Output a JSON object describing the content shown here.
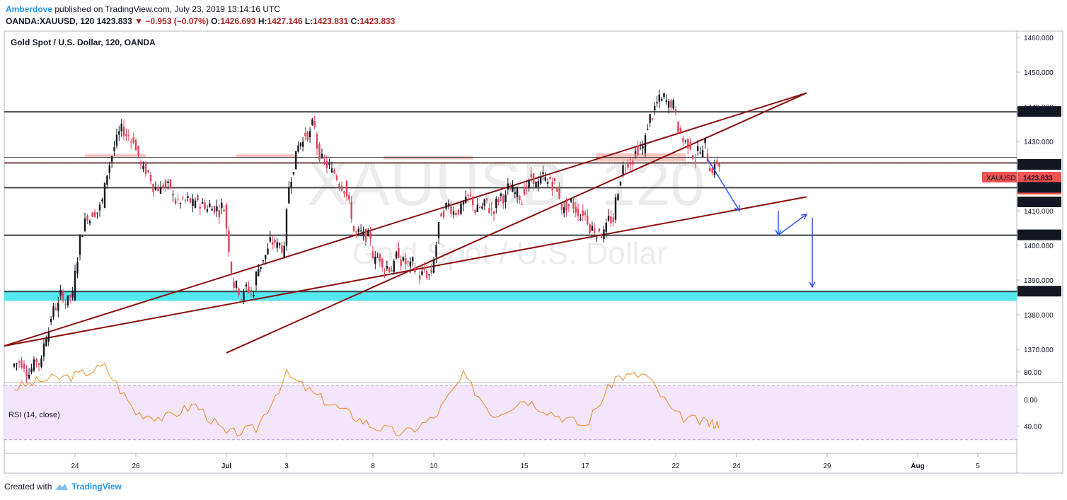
{
  "header": {
    "author": "Amberdove",
    "published": "published on TradingView.com, July 23, 2019 13:14:16 UTC",
    "symbol": "OANDA:XAUUSD, 120",
    "last": "1423.833",
    "change": "−0.953 (−0.07%)",
    "o_label": "O:",
    "o": "1426.693",
    "h_label": "H:",
    "h": "1427.146",
    "l_label": "L:",
    "l": "1423.831",
    "c_label": "C:",
    "c": "1423.833"
  },
  "footer": {
    "created_with": "Created with",
    "brand": "TradingView"
  },
  "colors": {
    "up": "#131722",
    "down": "#e0435a",
    "trend": "#8b0f0f",
    "level": "#444444",
    "support_zone": "#55e8f0",
    "resist_zone": "#f3b6b0",
    "arrow": "#2957e8",
    "rsi_line": "#f08a24",
    "rsi_band": "#f3e5fb",
    "price_tag": "#ef5350"
  },
  "chart_data": [
    {
      "type": "line",
      "title": "Gold Spot / U.S. Dollar, 120, OANDA",
      "watermark": [
        "XAUUSD, 120",
        "Gold Spot / U.S. Dollar"
      ],
      "xlabel": "",
      "ylabel": "",
      "ylim": [
        1364,
        1463
      ],
      "x_ticks": [
        "24",
        "26",
        "Jul",
        "3",
        "8",
        "10",
        "15",
        "17",
        "22",
        "24",
        "29",
        "Aug",
        "5"
      ],
      "y_ticks": [
        "1460.000",
        "1450.000",
        "1440.000",
        "1430.000",
        "1420.000",
        "1410.000",
        "1400.000",
        "1390.000",
        "1380.000",
        "1370.000"
      ],
      "x": [
        "Jun 20",
        "Jun 21",
        "Jun 24",
        "Jun 25",
        "Jun 26",
        "Jun 27",
        "Jun 28",
        "Jul 1",
        "Jul 2",
        "Jul 3",
        "Jul 4",
        "Jul 5",
        "Jul 8",
        "Jul 9",
        "Jul 10",
        "Jul 11",
        "Jul 12",
        "Jul 15",
        "Jul 16",
        "Jul 17",
        "Jul 18",
        "Jul 19",
        "Jul 22",
        "Jul 23"
      ],
      "series": [
        {
          "values": [
            1367,
            1385,
            1412,
            1432,
            1418,
            1411,
            1412,
            1387,
            1400,
            1433,
            1420,
            1400,
            1396,
            1391,
            1412,
            1410,
            1415,
            1418,
            1410,
            1406,
            1428,
            1441,
            1428,
            1424
          ]
        }
      ],
      "horizontal_levels": [
        1438.541,
        1425.376,
        1423.791,
        1416.649,
        1402.945,
        1386.692
      ],
      "price_labels": [
        {
          "value": 1438.541,
          "text": "1438.541"
        },
        {
          "value": 1425.376,
          "text": "1425.376"
        },
        {
          "value": 1423.833,
          "text": "1423.833",
          "tag": "XAUUSD",
          "countdown": "01:45:45"
        },
        {
          "value": 1423.791,
          "text": "1423.791"
        },
        {
          "value": 1416.649,
          "text": "1416.649"
        },
        {
          "value": 1402.945,
          "text": "1402.945"
        },
        {
          "value": 1386.692,
          "text": "1386.692"
        }
      ],
      "support_zone": [
        1384.0,
        1387.0
      ],
      "resistance_zones": [
        {
          "from": "Jun 25",
          "to": "Jun 26",
          "range": [
            1425.3,
            1426.3
          ]
        },
        {
          "from": "Jul 2",
          "to": "Jul 3",
          "range": [
            1425.3,
            1426.3
          ]
        },
        {
          "from": "Jul 9",
          "to": "Jul 11",
          "range": [
            1424.8,
            1425.8
          ]
        },
        {
          "from": "Jul 18",
          "to": "Jul 22",
          "range": [
            1424.2,
            1426.6
          ]
        }
      ],
      "trendlines": [
        {
          "from": {
            "x": "Jun 19",
            "y": 1371
          },
          "to": {
            "x": "Jul 26",
            "y": 1444
          }
        },
        {
          "from": {
            "x": "Jul 1",
            "y": 1369
          },
          "to": {
            "x": "Jul 26",
            "y": 1444
          }
        },
        {
          "from": {
            "x": "Jun 19",
            "y": 1371
          },
          "to": {
            "x": "Jul 26",
            "y": 1414
          }
        }
      ],
      "projection_arrows": [
        {
          "from": {
            "x": "Jul 23",
            "y": 1425
          },
          "to": {
            "x": "Jul 24",
            "y": 1410
          }
        },
        {
          "from": {
            "x": "Jul 25",
            "y": 1410
          },
          "to": {
            "x": "Jul 25",
            "y": 1403
          }
        },
        {
          "from": {
            "x": "Jul 25",
            "y": 1403
          },
          "to": {
            "x": "Jul 26",
            "y": 1409
          }
        },
        {
          "from": {
            "x": "Jul 27",
            "y": 1408
          },
          "to": {
            "x": "Jul 27",
            "y": 1388
          }
        }
      ]
    },
    {
      "type": "line",
      "title": "RSI (14, close)",
      "ylim": [
        20,
        100
      ],
      "y_ticks": [
        "80.00",
        "40.00"
      ],
      "zero_tick": "0.00",
      "band": [
        30,
        70
      ],
      "x": [
        "Jun 20",
        "Jun 21",
        "Jun 24",
        "Jun 25",
        "Jun 26",
        "Jun 27",
        "Jun 28",
        "Jul 1",
        "Jul 2",
        "Jul 3",
        "Jul 4",
        "Jul 5",
        "Jul 8",
        "Jul 9",
        "Jul 10",
        "Jul 11",
        "Jul 12",
        "Jul 15",
        "Jul 16",
        "Jul 17",
        "Jul 18",
        "Jul 19",
        "Jul 22",
        "Jul 23"
      ],
      "series": [
        {
          "values": [
            68,
            74,
            77,
            84,
            50,
            46,
            56,
            34,
            38,
            78,
            62,
            50,
            40,
            34,
            46,
            77,
            48,
            60,
            49,
            40,
            76,
            78,
            48,
            42
          ]
        }
      ]
    }
  ]
}
